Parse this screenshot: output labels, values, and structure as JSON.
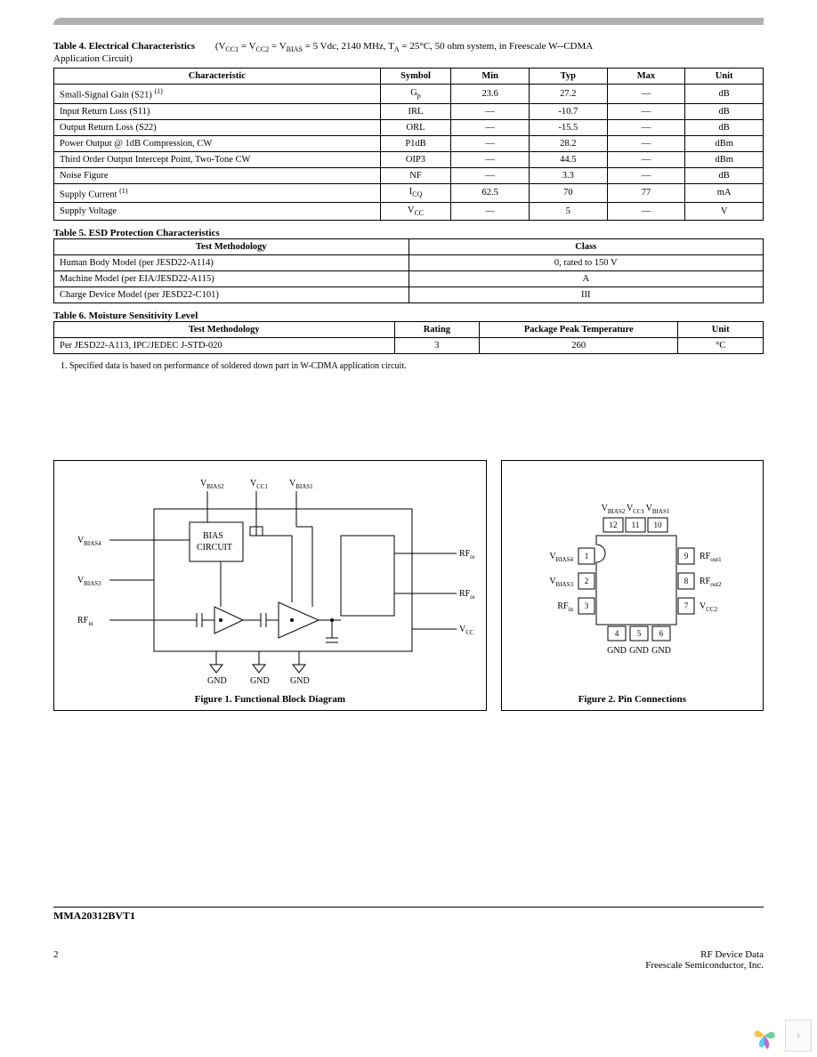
{
  "table4": {
    "title": "Table 4. Electrical Characteristics",
    "condition_prefix": "(V",
    "condition_mid1": " = V",
    "condition_mid2": " = V",
    "condition_rest": " = 5 Vdc, 2140 MHz, T",
    "condition_tail": " = 25°C, 50 ohm system, in Freescale W--CDMA",
    "condition_line2": "Application Circuit)",
    "sub_cc1": "CC1",
    "sub_cc2": "CC2",
    "sub_bias": "BIAS",
    "sub_a": "A",
    "headers": [
      "Characteristic",
      "Symbol",
      "Min",
      "Typ",
      "Max",
      "Unit"
    ],
    "rows": [
      {
        "char": "Small-Signal Gain (S21)",
        "note": "(1)",
        "sym_pre": "G",
        "sym_sub": "p",
        "min": "23.6",
        "typ": "27.2",
        "max": "—",
        "unit": "dB"
      },
      {
        "char": "Input Return Loss (S11)",
        "note": "",
        "sym_pre": "IRL",
        "sym_sub": "",
        "min": "—",
        "typ": "-10.7",
        "max": "—",
        "unit": "dB"
      },
      {
        "char": "Output Return Loss (S22)",
        "note": "",
        "sym_pre": "ORL",
        "sym_sub": "",
        "min": "—",
        "typ": "-15.5",
        "max": "—",
        "unit": "dB"
      },
      {
        "char": "Power Output @ 1dB Compression, CW",
        "note": "",
        "sym_pre": "P1dB",
        "sym_sub": "",
        "min": "—",
        "typ": "28.2",
        "max": "—",
        "unit": "dBm"
      },
      {
        "char": "Third Order Output Intercept Point, Two-Tone CW",
        "note": "",
        "sym_pre": "OIP3",
        "sym_sub": "",
        "min": "—",
        "typ": "44.5",
        "max": "—",
        "unit": "dBm"
      },
      {
        "char": "Noise Figure",
        "note": "",
        "sym_pre": "NF",
        "sym_sub": "",
        "min": "—",
        "typ": "3.3",
        "max": "—",
        "unit": "dB"
      },
      {
        "char": "Supply Current",
        "note": "(1)",
        "sym_pre": "I",
        "sym_sub": "CQ",
        "min": "62.5",
        "typ": "70",
        "max": "77",
        "unit": "mA"
      },
      {
        "char": "Supply Voltage",
        "note": "",
        "sym_pre": "V",
        "sym_sub": "CC",
        "min": "—",
        "typ": "5",
        "max": "—",
        "unit": "V"
      }
    ]
  },
  "table5": {
    "title": "Table 5. ESD Protection Characteristics",
    "headers": [
      "Test Methodology",
      "Class"
    ],
    "rows": [
      {
        "m": "Human Body Model (per JESD22-A114)",
        "c": "0, rated to 150 V"
      },
      {
        "m": "Machine Model (per EIA/JESD22-A115)",
        "c": "A"
      },
      {
        "m": "Charge Device Model (per JESD22-C101)",
        "c": "III"
      }
    ]
  },
  "table6": {
    "title": "Table 6. Moisture Sensitivity Level",
    "headers": [
      "Test Methodology",
      "Rating",
      "Package Peak Temperature",
      "Unit"
    ],
    "rows": [
      {
        "m": "Per JESD22-A113, IPC/JEDEC J-STD-020",
        "r": "3",
        "t": "260",
        "u": "°C"
      }
    ],
    "footnote": "1. Specified data is based on performance of soldered down part in W-CDMA application circuit."
  },
  "fig1": {
    "caption": "Figure 1. Functional Block Diagram",
    "labels": {
      "vbias2": "V",
      "vbias2_sub": "BIAS2",
      "vcc1": "V",
      "vcc1_sub": "CC1",
      "vbias1": "V",
      "vbias1_sub": "BIAS1",
      "vbias4": "V",
      "vbias4_sub": "BIAS4",
      "vbias3": "V",
      "vbias3_sub": "BIAS3",
      "rfin": "RF",
      "rfin_sub": "in",
      "bias_line1": "BIAS",
      "bias_line2": "CIRCUIT",
      "rfout1": "RF",
      "rfout1_sub": "out1",
      "rfout2": "RF",
      "rfout2_sub": "out2",
      "vcc2": "V",
      "vcc2_sub": "CC2",
      "gnd": "GND"
    }
  },
  "fig2": {
    "caption": "Figure 2. Pin Connections",
    "top_lbls": [
      {
        "t": "V",
        "s": "BIAS2"
      },
      {
        "t": "V",
        "s": "CC1"
      },
      {
        "t": "V",
        "s": "BIAS1"
      }
    ],
    "top_pins": [
      "12",
      "11",
      "10"
    ],
    "left_lbls": [
      {
        "t": "V",
        "s": "BIAS4"
      },
      {
        "t": "V",
        "s": "BIAS3"
      },
      {
        "t": "RF",
        "s": "in"
      }
    ],
    "left_pins": [
      "1",
      "2",
      "3"
    ],
    "right_pins": [
      "9",
      "8",
      "7"
    ],
    "right_lbls": [
      {
        "t": "RF",
        "s": "out1"
      },
      {
        "t": "RF",
        "s": "out2"
      },
      {
        "t": "V",
        "s": "CC2"
      }
    ],
    "bottom_pins": [
      "4",
      "5",
      "6"
    ],
    "bottom_lbls": [
      "GND",
      "GND",
      "GND"
    ]
  },
  "footer": {
    "part": "MMA20312BVT1",
    "page": "2",
    "right1": "RF Device Data",
    "right2": "Freescale Semiconductor, Inc."
  },
  "colors": {
    "logo1": "#f2c94c",
    "logo2": "#6fcf97",
    "logo3": "#56ccf2",
    "logo4": "#bb6bd9"
  }
}
